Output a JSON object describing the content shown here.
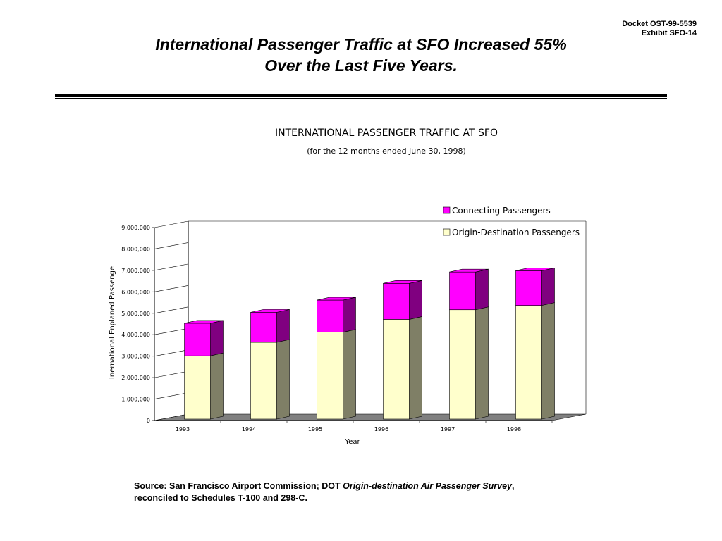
{
  "header": {
    "docket": "Docket OST-99-5539",
    "exhibit": "Exhibit SFO-14",
    "headline_line1": "International Passenger Traffic at SFO Increased 55%",
    "headline_line2": "Over the Last Five Years."
  },
  "footer": {
    "source_prefix": "Source: San Francisco Airport Commission; DOT ",
    "source_italic": "Origin-destination Air Passenger Survey",
    "source_suffix": ", reconciled to Schedules T-100 and 298-C."
  },
  "colors": {
    "origin_front": "#ffffcc",
    "origin_side": "#7f7f66",
    "connecting_front": "#ff00ff",
    "connecting_side": "#800080",
    "floor": "#808080"
  },
  "chart_data": {
    "type": "bar",
    "stacked": true,
    "three_d": true,
    "title": "INTERNATIONAL PASSENGER TRAFFIC AT SFO",
    "subtitle": "(for the 12 months ended June 30, 1998)",
    "xlabel": "Year",
    "ylabel": "Inernational Enplaned Passenge",
    "categories": [
      "1993",
      "1994",
      "1995",
      "1996",
      "1997",
      "1998"
    ],
    "ylim": [
      0,
      9000000
    ],
    "yticks": [
      "0",
      "1,000,000",
      "2,000,000",
      "3,000,000",
      "4,000,000",
      "5,000,000",
      "6,000,000",
      "7,000,000",
      "8,000,000",
      "9,000,000"
    ],
    "grid": false,
    "legend_position": "top-right",
    "series": [
      {
        "name": "Origin-Destination Passengers",
        "values": [
          2950000,
          3580000,
          4050000,
          4650000,
          5100000,
          5300000
        ]
      },
      {
        "name": "Connecting Passengers",
        "values": [
          1520000,
          1400000,
          1500000,
          1680000,
          1760000,
          1620000
        ]
      }
    ]
  }
}
